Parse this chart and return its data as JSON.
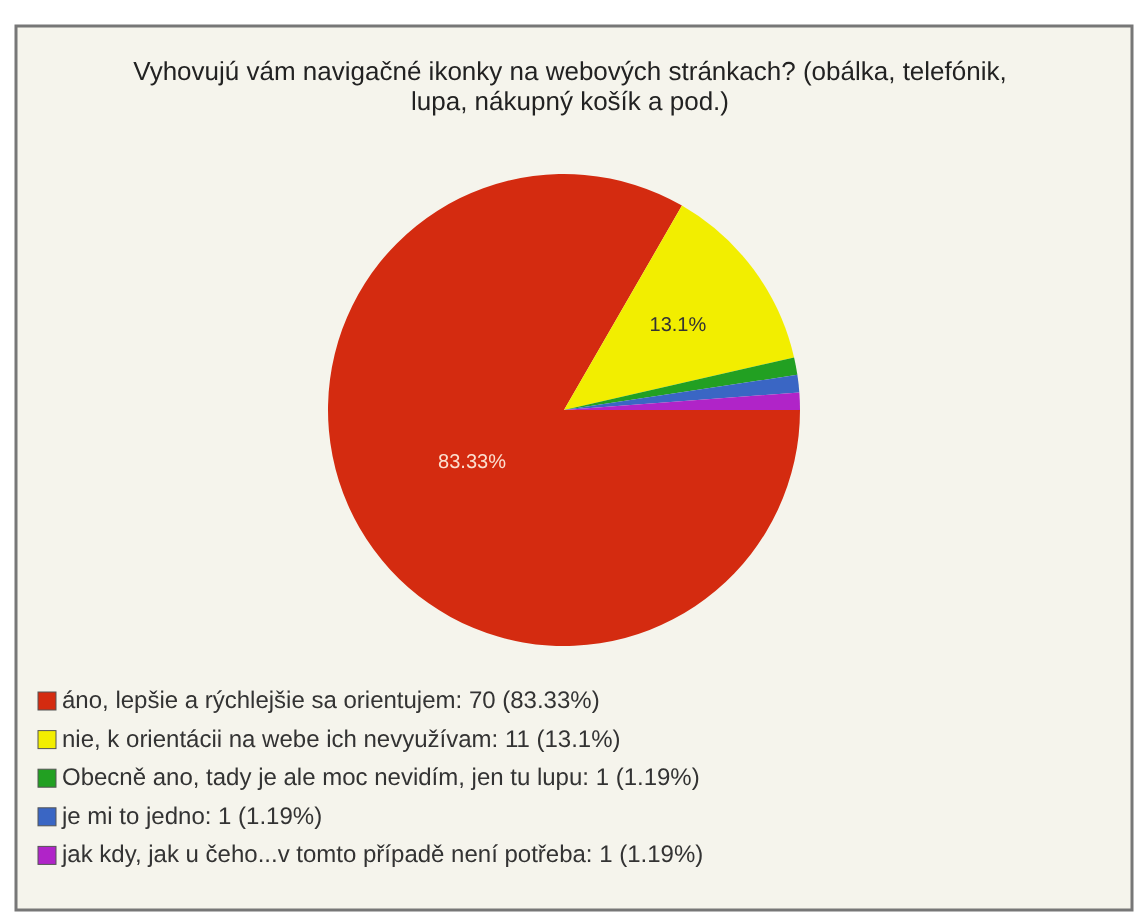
{
  "chart_data": {
    "type": "pie",
    "title": "Vyhovujú vám navigačné ikonky na webových stránkach? (obálka, telefónik, lupa, nákupný košík a pod.)",
    "categories": [
      "áno, lepšie a rýchlejšie sa orientujem: 70 (83.33%)",
      "nie, k orientácii na webe ich nevyužívam: 11 (13.1%)",
      "Obecně ano, tady je ale moc nevidím, jen tu lupu: 1 (1.19%)",
      "je mi to jedno: 1 (1.19%)",
      "jak kdy, jak u čeho...v tomto případě není potřeba: 1 (1.19%)"
    ],
    "values": [
      83.33,
      13.1,
      1.19,
      1.19,
      1.19
    ],
    "colors": [
      "#d42b10",
      "#f2ee00",
      "#22a022",
      "#3a66c4",
      "#b024c8"
    ],
    "value_labels": [
      "83.33%",
      "13.1%",
      null,
      null,
      null
    ],
    "legend": "bottom left"
  }
}
